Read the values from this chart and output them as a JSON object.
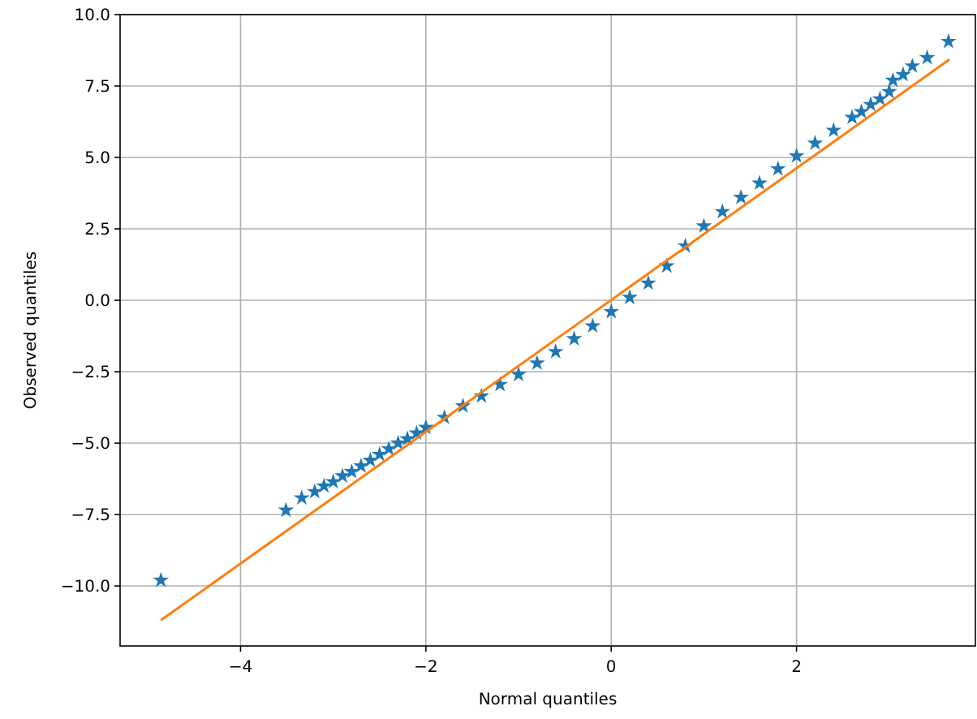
{
  "chart_data": {
    "type": "scatter",
    "xlabel": "Normal quantiles",
    "ylabel": "Observed quantiles",
    "xlim": [
      -5.3,
      3.93
    ],
    "ylim": [
      -12.1,
      10.0
    ],
    "xticks": [
      {
        "value": -4,
        "label": "−4"
      },
      {
        "value": -2,
        "label": "−2"
      },
      0,
      2
    ],
    "yticks": [
      {
        "value": -10,
        "label": "−10.0"
      },
      {
        "value": -7.5,
        "label": "−7.5"
      },
      {
        "value": -5,
        "label": "−5.0"
      },
      {
        "value": -2.5,
        "label": "−2.5"
      },
      {
        "value": 0,
        "label": "0.0"
      },
      {
        "value": 2.5,
        "label": "2.5"
      },
      {
        "value": 5,
        "label": "5.0"
      },
      {
        "value": 7.5,
        "label": "7.5"
      },
      {
        "value": 10,
        "label": "10.0"
      }
    ],
    "grid": true,
    "marker": "star",
    "series": [
      {
        "color": "#1f77b4",
        "x": [
          -4.86,
          -3.51,
          -3.34,
          -3.2,
          -3.1,
          -3.0,
          -2.9,
          -2.8,
          -2.7,
          -2.6,
          -2.5,
          -2.4,
          -2.3,
          -2.2,
          -2.1,
          -2.0,
          -1.8,
          -1.6,
          -1.4,
          -1.2,
          -1.0,
          -0.8,
          -0.6,
          -0.4,
          -0.2,
          0.0,
          0.2,
          0.4,
          0.6,
          0.8,
          1.0,
          1.2,
          1.4,
          1.6,
          1.8,
          2.0,
          2.2,
          2.4,
          2.6,
          2.7,
          2.8,
          2.9,
          3.0,
          3.04,
          3.15,
          3.25,
          3.41,
          3.64
        ],
        "values": [
          -9.8,
          -7.35,
          -6.92,
          -6.7,
          -6.5,
          -6.35,
          -6.15,
          -6.0,
          -5.8,
          -5.6,
          -5.4,
          -5.2,
          -5.0,
          -4.85,
          -4.65,
          -4.45,
          -4.1,
          -3.7,
          -3.35,
          -2.95,
          -2.6,
          -2.2,
          -1.8,
          -1.35,
          -0.9,
          -0.4,
          0.1,
          0.6,
          1.2,
          1.9,
          2.6,
          3.1,
          3.6,
          4.1,
          4.6,
          5.05,
          5.5,
          5.95,
          6.4,
          6.6,
          6.85,
          7.05,
          7.3,
          7.7,
          7.9,
          8.2,
          8.49,
          9.06
        ]
      },
      {
        "type": "line",
        "color": "#ff7f0e",
        "marker": "none",
        "x": [
          -4.86,
          3.65
        ],
        "values": [
          -11.2,
          8.43
        ]
      }
    ]
  }
}
